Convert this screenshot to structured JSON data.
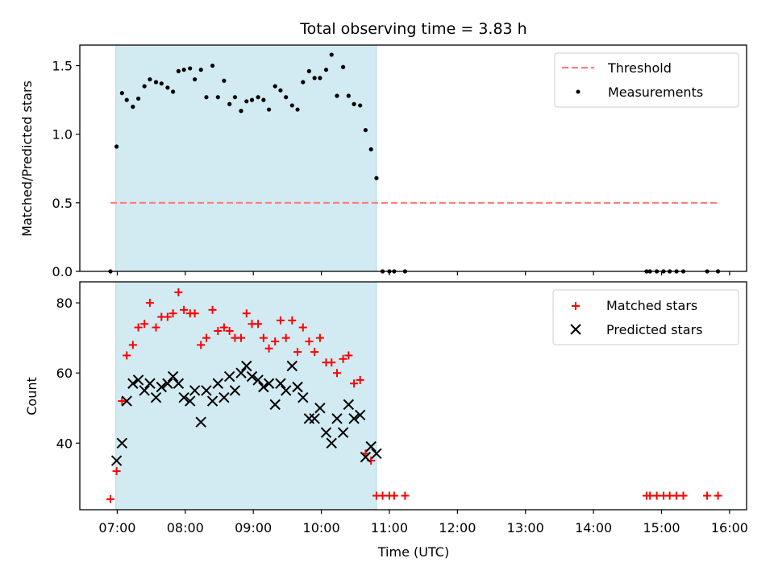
{
  "chart_data": [
    {
      "type": "scatter",
      "title": "Total observing time = 3.83 h",
      "xlabel": "",
      "ylabel": "Matched/Predicted stars",
      "x_unit": "hours UTC",
      "xlim": [
        6.45,
        16.25
      ],
      "ylim": [
        0.0,
        1.65
      ],
      "yticks": [
        0.0,
        0.5,
        1.0,
        1.5
      ],
      "ytick_labels": [
        "0.0",
        "0.5",
        "1.0",
        "1.5"
      ],
      "shaded_interval": [
        6.98,
        10.81
      ],
      "shade_color": "#add8e6",
      "legend": {
        "position": "upper right",
        "threshold_label": "Threshold",
        "measurements_label": "Measurements"
      },
      "threshold": {
        "name": "Threshold",
        "value": 0.5,
        "x_range": [
          6.9,
          15.83
        ],
        "color": "#ff7f7f",
        "style": "dashed"
      },
      "series": [
        {
          "name": "Measurements",
          "color": "#000000",
          "marker": "dot",
          "points": [
            [
              6.9,
              0.0
            ],
            [
              6.99,
              0.91
            ],
            [
              7.07,
              1.3
            ],
            [
              7.14,
              1.25
            ],
            [
              7.23,
              1.2
            ],
            [
              7.31,
              1.26
            ],
            [
              7.4,
              1.35
            ],
            [
              7.48,
              1.4
            ],
            [
              7.57,
              1.38
            ],
            [
              7.65,
              1.37
            ],
            [
              7.74,
              1.34
            ],
            [
              7.82,
              1.31
            ],
            [
              7.9,
              1.46
            ],
            [
              7.98,
              1.47
            ],
            [
              8.07,
              1.48
            ],
            [
              8.14,
              1.4
            ],
            [
              8.23,
              1.47
            ],
            [
              8.31,
              1.27
            ],
            [
              8.4,
              1.5
            ],
            [
              8.48,
              1.27
            ],
            [
              8.57,
              1.39
            ],
            [
              8.65,
              1.22
            ],
            [
              8.73,
              1.27
            ],
            [
              8.82,
              1.17
            ],
            [
              8.9,
              1.24
            ],
            [
              8.98,
              1.25
            ],
            [
              9.07,
              1.27
            ],
            [
              9.15,
              1.25
            ],
            [
              9.23,
              1.18
            ],
            [
              9.32,
              1.35
            ],
            [
              9.4,
              1.32
            ],
            [
              9.48,
              1.27
            ],
            [
              9.57,
              1.21
            ],
            [
              9.65,
              1.18
            ],
            [
              9.73,
              1.38
            ],
            [
              9.82,
              1.46
            ],
            [
              9.9,
              1.41
            ],
            [
              9.98,
              1.41
            ],
            [
              10.07,
              1.47
            ],
            [
              10.15,
              1.58
            ],
            [
              10.23,
              1.28
            ],
            [
              10.32,
              1.49
            ],
            [
              10.4,
              1.28
            ],
            [
              10.48,
              1.22
            ],
            [
              10.57,
              1.21
            ],
            [
              10.65,
              1.03
            ],
            [
              10.73,
              0.89
            ],
            [
              10.81,
              0.68
            ],
            [
              10.9,
              0.0
            ],
            [
              11.0,
              0.0
            ],
            [
              11.07,
              0.0
            ],
            [
              11.23,
              0.0
            ],
            [
              14.78,
              0.0
            ],
            [
              14.83,
              0.0
            ],
            [
              14.93,
              0.0
            ],
            [
              15.03,
              0.0
            ],
            [
              15.12,
              0.0
            ],
            [
              15.22,
              0.0
            ],
            [
              15.32,
              0.0
            ],
            [
              15.67,
              0.0
            ],
            [
              15.83,
              0.0
            ]
          ]
        }
      ]
    },
    {
      "type": "scatter",
      "title": "",
      "xlabel": "Time (UTC)",
      "ylabel": "Count",
      "x_unit": "hours UTC",
      "xlim": [
        6.45,
        16.25
      ],
      "ylim": [
        21,
        86
      ],
      "yticks": [
        40,
        60,
        80
      ],
      "ytick_labels": [
        "40",
        "60",
        "80"
      ],
      "xticks": [
        7,
        8,
        9,
        10,
        11,
        12,
        13,
        14,
        15,
        16
      ],
      "xtick_labels": [
        "07:00",
        "08:00",
        "09:00",
        "10:00",
        "11:00",
        "12:00",
        "13:00",
        "14:00",
        "15:00",
        "16:00"
      ],
      "shaded_interval": [
        6.98,
        10.81
      ],
      "shade_color": "#add8e6",
      "legend": {
        "position": "upper right",
        "matched_label": "Matched stars",
        "predicted_label": "Predicted stars"
      },
      "series": [
        {
          "name": "Matched stars",
          "color": "#ff0000",
          "marker": "plus",
          "points": [
            [
              6.9,
              24
            ],
            [
              6.99,
              32
            ],
            [
              7.07,
              52
            ],
            [
              7.14,
              65
            ],
            [
              7.23,
              68
            ],
            [
              7.31,
              73
            ],
            [
              7.4,
              74
            ],
            [
              7.48,
              80
            ],
            [
              7.57,
              73
            ],
            [
              7.65,
              76
            ],
            [
              7.74,
              76
            ],
            [
              7.82,
              77
            ],
            [
              7.9,
              83
            ],
            [
              7.98,
              78
            ],
            [
              8.07,
              77
            ],
            [
              8.14,
              77
            ],
            [
              8.23,
              68
            ],
            [
              8.31,
              70
            ],
            [
              8.4,
              78
            ],
            [
              8.48,
              72
            ],
            [
              8.57,
              73
            ],
            [
              8.65,
              72
            ],
            [
              8.73,
              70
            ],
            [
              8.82,
              70
            ],
            [
              8.9,
              77
            ],
            [
              8.98,
              74
            ],
            [
              9.07,
              74
            ],
            [
              9.15,
              70
            ],
            [
              9.23,
              67
            ],
            [
              9.32,
              69
            ],
            [
              9.4,
              75
            ],
            [
              9.48,
              70
            ],
            [
              9.57,
              75
            ],
            [
              9.65,
              66
            ],
            [
              9.73,
              73
            ],
            [
              9.82,
              69
            ],
            [
              9.9,
              66
            ],
            [
              9.98,
              70
            ],
            [
              10.07,
              63
            ],
            [
              10.15,
              63
            ],
            [
              10.23,
              60
            ],
            [
              10.32,
              64
            ],
            [
              10.4,
              65
            ],
            [
              10.48,
              57
            ],
            [
              10.57,
              58
            ],
            [
              10.65,
              37
            ],
            [
              10.73,
              35
            ],
            [
              10.81,
              25
            ],
            [
              10.9,
              25
            ],
            [
              11.0,
              25
            ],
            [
              11.07,
              25
            ],
            [
              11.23,
              25
            ],
            [
              14.78,
              25
            ],
            [
              14.83,
              25
            ],
            [
              14.93,
              25
            ],
            [
              15.03,
              25
            ],
            [
              15.12,
              25
            ],
            [
              15.22,
              25
            ],
            [
              15.32,
              25
            ],
            [
              15.67,
              25
            ],
            [
              15.83,
              25
            ]
          ]
        },
        {
          "name": "Predicted stars",
          "color": "#000000",
          "marker": "x",
          "points": [
            [
              6.99,
              35
            ],
            [
              7.07,
              40
            ],
            [
              7.14,
              52
            ],
            [
              7.23,
              57
            ],
            [
              7.31,
              58
            ],
            [
              7.4,
              55
            ],
            [
              7.48,
              57
            ],
            [
              7.57,
              53
            ],
            [
              7.65,
              56
            ],
            [
              7.74,
              57
            ],
            [
              7.82,
              59
            ],
            [
              7.9,
              57
            ],
            [
              7.98,
              53
            ],
            [
              8.07,
              52
            ],
            [
              8.14,
              55
            ],
            [
              8.23,
              46
            ],
            [
              8.31,
              55
            ],
            [
              8.4,
              52
            ],
            [
              8.48,
              57
            ],
            [
              8.57,
              53
            ],
            [
              8.65,
              59
            ],
            [
              8.73,
              55
            ],
            [
              8.82,
              60
            ],
            [
              8.9,
              62
            ],
            [
              8.98,
              59
            ],
            [
              9.07,
              58
            ],
            [
              9.15,
              56
            ],
            [
              9.23,
              57
            ],
            [
              9.32,
              51
            ],
            [
              9.4,
              57
            ],
            [
              9.48,
              55
            ],
            [
              9.57,
              62
            ],
            [
              9.65,
              56
            ],
            [
              9.73,
              53
            ],
            [
              9.82,
              47
            ],
            [
              9.9,
              47
            ],
            [
              9.98,
              50
            ],
            [
              10.07,
              43
            ],
            [
              10.15,
              40
            ],
            [
              10.23,
              47
            ],
            [
              10.32,
              43
            ],
            [
              10.4,
              51
            ],
            [
              10.48,
              47
            ],
            [
              10.57,
              48
            ],
            [
              10.65,
              36
            ],
            [
              10.73,
              39
            ],
            [
              10.81,
              37
            ]
          ]
        }
      ]
    }
  ]
}
